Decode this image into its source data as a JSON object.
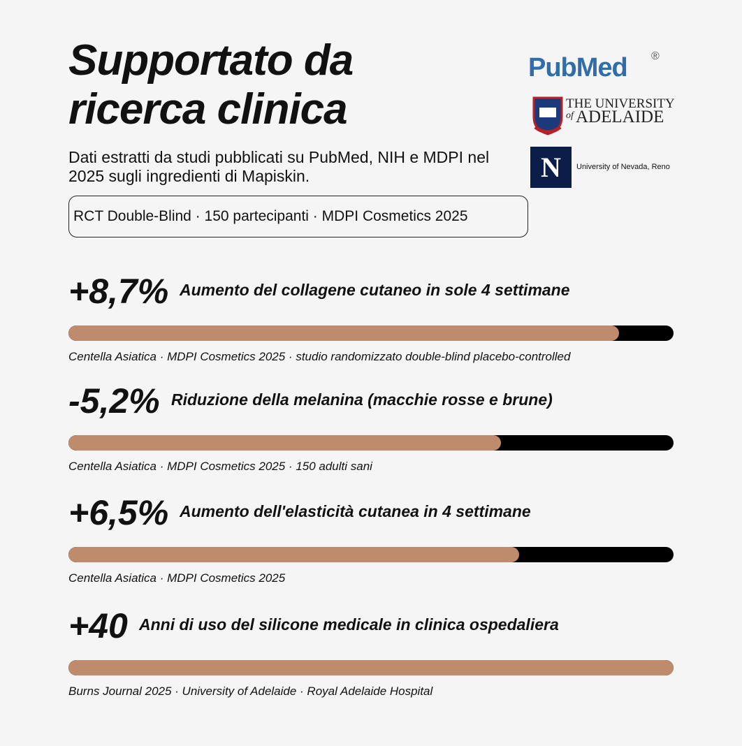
{
  "header": {
    "title": "Supportato da ricerca clinica",
    "subtitle": "Dati estratti da studi pubblicati su PubMed, NIH e MDPI nel 2025 sugli ingredienti di Mapiskin.",
    "badge": "RCT Double-Blind · 150 partecipanti · MDPI Cosmetics 2025"
  },
  "logos": {
    "pubmed": "PubMed",
    "pubmed_mark": "®",
    "adelaide": [
      "THE UNIVERSITY",
      "of",
      "ADELAIDE"
    ],
    "nevada_mark": "N",
    "nevada": "University of Nevada, Reno"
  },
  "rows": [
    {
      "stat": "+8,7%",
      "label": "Aumento del collagene cutaneo in sole 4 settimane",
      "fill": 91,
      "source": "Centella Asiatica · MDPI Cosmetics 2025 · studio randomizzato double-blind placebo-controlled"
    },
    {
      "stat": "-5,2%",
      "label": "Riduzione della melanina (macchie rosse e brune)",
      "fill": 71.5,
      "source": "Centella Asiatica · MDPI Cosmetics 2025 · 150 adulti sani"
    },
    {
      "stat": "+6,5%",
      "label": "Aumento dell'elasticità cutanea in 4 settimane",
      "fill": 74.5,
      "source": "Centella Asiatica · MDPI Cosmetics 2025"
    },
    {
      "stat": "+40",
      "label": "Anni di uso del silicone medicale in clinica ospedaliera",
      "fill": 100,
      "source": "Burns Journal 2025 · University of Adelaide · Royal Adelaide Hospital"
    }
  ]
}
